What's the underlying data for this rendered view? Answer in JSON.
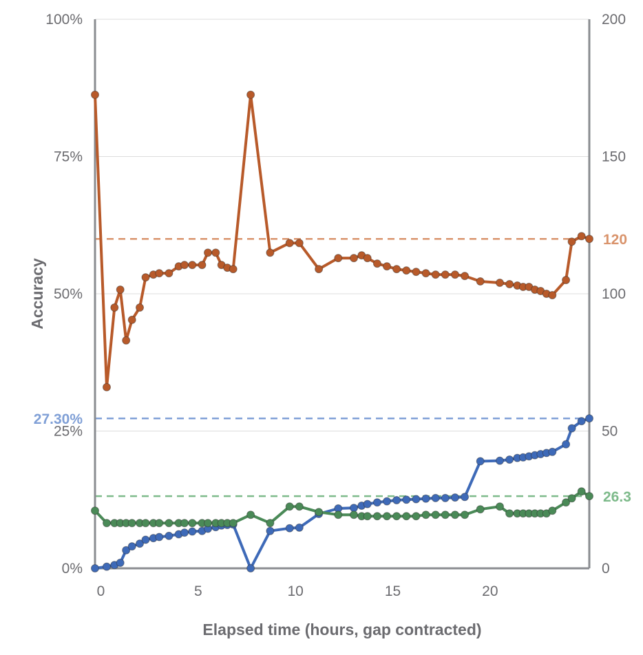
{
  "chart_data": {
    "type": "line",
    "xlabel": "Elapsed time (hours, gap contracted)",
    "ylabel": "Accuracy",
    "x_ticks": [
      "0",
      "5",
      "10",
      "15",
      "20"
    ],
    "x_tick_values": [
      0,
      5,
      10,
      15,
      20
    ],
    "xlim": [
      -0.3,
      25.1
    ],
    "y_left_ticks": [
      "0%",
      "25%",
      "50%",
      "75%",
      "100%"
    ],
    "y_left_tick_values": [
      0,
      25,
      50,
      75,
      100
    ],
    "ylim_left": [
      0,
      100
    ],
    "y_right_ticks": [
      "0",
      "50",
      "100",
      "150",
      "200"
    ],
    "y_right_tick_values": [
      0,
      50,
      100,
      150,
      200
    ],
    "ylim_right": [
      0,
      200
    ],
    "grid": "horizontal",
    "colors": {
      "orange": "#b85a2a",
      "blue": "#3e6ab8",
      "green": "#4a8a57",
      "axis": "#8a8c90",
      "grid": "#dcdcdc"
    },
    "reference_lines": [
      {
        "axis": "right",
        "value": 120,
        "label": "120",
        "color": "#d9936b",
        "label_side": "right"
      },
      {
        "axis": "left",
        "value": 27.3,
        "label": "27.30%",
        "color": "#7f9fd6",
        "label_side": "left"
      },
      {
        "axis": "right",
        "value": 26.3,
        "label": "26.3",
        "color": "#7dba8a",
        "label_side": "right"
      }
    ],
    "series": [
      {
        "axis": "right",
        "color": "#b85a2a",
        "points": [
          [
            -0.3,
            172.5
          ],
          [
            0.3,
            66
          ],
          [
            0.7,
            95
          ],
          [
            1.0,
            101.5
          ],
          [
            1.3,
            83
          ],
          [
            1.6,
            90.5
          ],
          [
            2.0,
            95
          ],
          [
            2.3,
            106
          ],
          [
            2.7,
            107
          ],
          [
            3.0,
            107.5
          ],
          [
            3.5,
            107.5
          ],
          [
            4.0,
            110
          ],
          [
            4.3,
            110.5
          ],
          [
            4.7,
            110.5
          ],
          [
            5.2,
            110.5
          ],
          [
            5.5,
            115
          ],
          [
            5.9,
            115
          ],
          [
            6.2,
            110.5
          ],
          [
            6.5,
            109.5
          ],
          [
            6.8,
            109
          ],
          [
            7.7,
            172.5
          ],
          [
            8.7,
            115
          ],
          [
            9.7,
            118.5
          ],
          [
            10.2,
            118.5
          ],
          [
            11.2,
            109
          ],
          [
            12.2,
            113
          ],
          [
            13.0,
            113
          ],
          [
            13.4,
            114
          ],
          [
            13.7,
            113
          ],
          [
            14.2,
            111
          ],
          [
            14.7,
            110
          ],
          [
            15.2,
            109
          ],
          [
            15.7,
            108.5
          ],
          [
            16.2,
            108
          ],
          [
            16.7,
            107.5
          ],
          [
            17.2,
            107
          ],
          [
            17.7,
            107
          ],
          [
            18.2,
            107
          ],
          [
            18.7,
            106.5
          ],
          [
            19.5,
            104.5
          ],
          [
            20.5,
            104
          ],
          [
            21.0,
            103.5
          ],
          [
            21.4,
            103
          ],
          [
            21.7,
            102.5
          ],
          [
            22.0,
            102.5
          ],
          [
            22.3,
            101.5
          ],
          [
            22.6,
            101
          ],
          [
            22.9,
            100
          ],
          [
            23.2,
            99.5
          ],
          [
            23.9,
            105
          ],
          [
            24.2,
            119
          ],
          [
            24.7,
            121
          ],
          [
            25.1,
            120
          ]
        ]
      },
      {
        "axis": "left",
        "color": "#3e6ab8",
        "points": [
          [
            -0.3,
            0
          ],
          [
            0.3,
            0.3
          ],
          [
            0.7,
            0.6
          ],
          [
            1.0,
            1
          ],
          [
            1.3,
            3.3
          ],
          [
            1.6,
            4
          ],
          [
            2.0,
            4.5
          ],
          [
            2.3,
            5.2
          ],
          [
            2.7,
            5.5
          ],
          [
            3.0,
            5.7
          ],
          [
            3.5,
            5.9
          ],
          [
            4.0,
            6.2
          ],
          [
            4.3,
            6.5
          ],
          [
            4.7,
            6.7
          ],
          [
            5.2,
            6.8
          ],
          [
            5.5,
            7.2
          ],
          [
            5.9,
            7.5
          ],
          [
            6.2,
            7.8
          ],
          [
            6.5,
            7.9
          ],
          [
            6.8,
            8.0
          ],
          [
            7.7,
            0
          ],
          [
            8.7,
            6.8
          ],
          [
            9.7,
            7.3
          ],
          [
            10.2,
            7.4
          ],
          [
            11.2,
            9.9
          ],
          [
            12.2,
            10.9
          ],
          [
            13.0,
            11
          ],
          [
            13.4,
            11.4
          ],
          [
            13.7,
            11.7
          ],
          [
            14.2,
            12
          ],
          [
            14.7,
            12.2
          ],
          [
            15.2,
            12.4
          ],
          [
            15.7,
            12.5
          ],
          [
            16.2,
            12.6
          ],
          [
            16.7,
            12.7
          ],
          [
            17.2,
            12.8
          ],
          [
            17.7,
            12.8
          ],
          [
            18.2,
            12.9
          ],
          [
            18.7,
            13
          ],
          [
            19.5,
            19.5
          ],
          [
            20.5,
            19.6
          ],
          [
            21.0,
            19.8
          ],
          [
            21.4,
            20.1
          ],
          [
            21.7,
            20.2
          ],
          [
            22.0,
            20.4
          ],
          [
            22.3,
            20.6
          ],
          [
            22.6,
            20.8
          ],
          [
            22.9,
            21
          ],
          [
            23.2,
            21.2
          ],
          [
            23.9,
            22.6
          ],
          [
            24.2,
            25.5
          ],
          [
            24.7,
            26.8
          ],
          [
            25.1,
            27.3
          ]
        ]
      },
      {
        "axis": "right",
        "color": "#4a8a57",
        "points": [
          [
            -0.3,
            21
          ],
          [
            0.3,
            16.5
          ],
          [
            0.7,
            16.5
          ],
          [
            1.0,
            16.5
          ],
          [
            1.3,
            16.5
          ],
          [
            1.6,
            16.5
          ],
          [
            2.0,
            16.5
          ],
          [
            2.3,
            16.5
          ],
          [
            2.7,
            16.5
          ],
          [
            3.0,
            16.5
          ],
          [
            3.5,
            16.5
          ],
          [
            4.0,
            16.5
          ],
          [
            4.3,
            16.5
          ],
          [
            4.7,
            16.5
          ],
          [
            5.2,
            16.5
          ],
          [
            5.5,
            16.5
          ],
          [
            5.9,
            16.5
          ],
          [
            6.2,
            16.5
          ],
          [
            6.5,
            16.5
          ],
          [
            6.8,
            16.5
          ],
          [
            7.7,
            19.5
          ],
          [
            8.7,
            16.5
          ],
          [
            9.7,
            22.5
          ],
          [
            10.2,
            22.5
          ],
          [
            11.2,
            20.5
          ],
          [
            12.2,
            19.5
          ],
          [
            13.0,
            19.5
          ],
          [
            13.4,
            19
          ],
          [
            13.7,
            19
          ],
          [
            14.2,
            19
          ],
          [
            14.7,
            19
          ],
          [
            15.2,
            19
          ],
          [
            15.7,
            19
          ],
          [
            16.2,
            19
          ],
          [
            16.7,
            19.5
          ],
          [
            17.2,
            19.5
          ],
          [
            17.7,
            19.5
          ],
          [
            18.2,
            19.5
          ],
          [
            18.7,
            19.5
          ],
          [
            19.5,
            21.5
          ],
          [
            20.5,
            22.5
          ],
          [
            21.0,
            20
          ],
          [
            21.4,
            20
          ],
          [
            21.7,
            20
          ],
          [
            22.0,
            20
          ],
          [
            22.3,
            20
          ],
          [
            22.6,
            20
          ],
          [
            22.9,
            20
          ],
          [
            23.2,
            21
          ],
          [
            23.9,
            24
          ],
          [
            24.2,
            25.5
          ],
          [
            24.7,
            28
          ],
          [
            25.1,
            26.3
          ]
        ]
      }
    ]
  }
}
